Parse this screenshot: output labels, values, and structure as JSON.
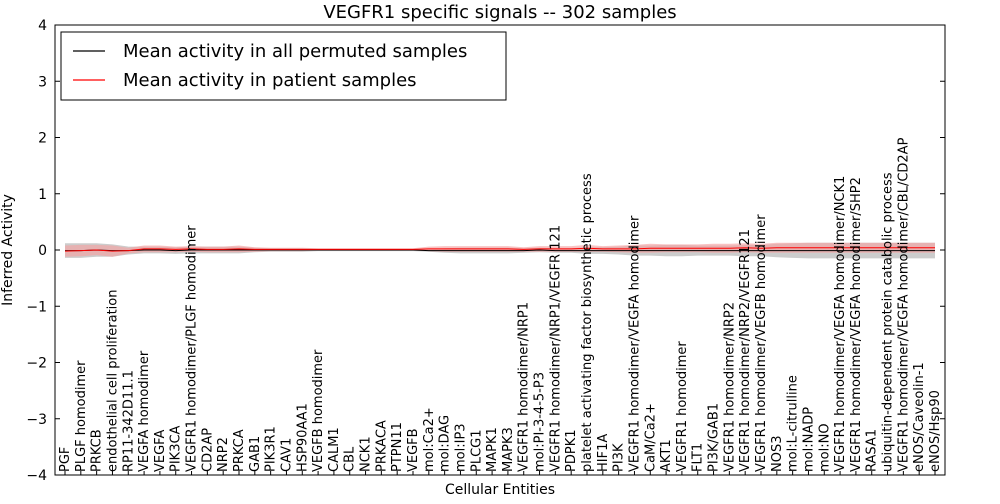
{
  "chart_data": {
    "type": "line",
    "title": "VEGFR1 specific signals -- 302 samples",
    "xlabel": "Cellular Entities",
    "ylabel": "Inferred Activity",
    "ylim": [
      -4,
      4
    ],
    "yticks": [
      -4,
      -3,
      -2,
      -1,
      0,
      1,
      2,
      3,
      4
    ],
    "ytick_labels": [
      "−4",
      "−3",
      "−2",
      "−1",
      "0",
      "1",
      "2",
      "3",
      "4"
    ],
    "grid": false,
    "legend_position": "top-left",
    "categories": [
      "PGF",
      "PLGF homodimer",
      "PRKCB",
      "endothelial cell proliferation",
      "RP11-342D11.1",
      "VEGFA homodimer",
      "VEGFA",
      "PIK3CA",
      "VEGFR1 homodimer/PLGF homodimer",
      "CD2AP",
      "NRP2",
      "PRKCA",
      "GAB1",
      "PIK3R1",
      "CAV1",
      "HSP90AA1",
      "VEGFB homodimer",
      "CALM1",
      "CBL",
      "NCK1",
      "PRKACA",
      "PTPN11",
      "VEGFB",
      "mol:Ca2+",
      "mol:DAG",
      "mol:IP3",
      "PLCG1",
      "MAPK1",
      "MAPK3",
      "VEGFR1 homodimer/NRP1",
      "mol:PI-3-4-5-P3",
      "VEGFR1 homodimer/NRP1/VEGFR 121",
      "PDPK1",
      "platelet activating factor biosynthetic process",
      "HIF1A",
      "PI3K",
      "VEGFR1 homodimer/VEGFA homodimer",
      "CaM/Ca2+",
      "AKT1",
      "VEGFR1 homodimer",
      "FLT1",
      "PI3K/GAB1",
      "VEGFR1 homodimer/NRP2",
      "VEGFR1 homodimer/NRP2/VEGFR121",
      "VEGFR1 homodimer/VEGFB homodimer",
      "NOS3",
      "mol:L-citrulline",
      "mol:NADP",
      "mol:NO",
      "VEGFR1 homodimer/VEGFA homodimer/NCK1",
      "VEGFR1 homodimer/VEGFA homodimer/SHP2",
      "RASA1",
      "ubiquitin-dependent protein catabolic process",
      "VEGFR1 homodimer/VEGFA homodimer/CBL/CD2AP",
      "eNOS/Caveolin-1",
      "eNOS/Hsp90"
    ],
    "series": [
      {
        "name": "Mean activity in all permuted samples",
        "color": "#000000",
        "band_color": "#bfbfbf",
        "values": [
          -0.01,
          -0.01,
          0,
          -0.01,
          -0.01,
          0,
          0,
          -0.01,
          0,
          0,
          0,
          0,
          0,
          0,
          0,
          0,
          0,
          0,
          0,
          0,
          0,
          0,
          0,
          -0.01,
          -0.01,
          -0.01,
          -0.01,
          -0.01,
          -0.01,
          -0.01,
          0,
          -0.01,
          -0.01,
          -0.01,
          -0.01,
          -0.01,
          -0.01,
          -0.01,
          -0.01,
          -0.01,
          -0.01,
          -0.01,
          -0.01,
          -0.01,
          -0.01,
          -0.01,
          -0.01,
          -0.01,
          -0.01,
          -0.01,
          -0.01,
          -0.01,
          -0.01,
          -0.01,
          -0.01,
          -0.01
        ],
        "band": [
          0.13,
          0.13,
          0.12,
          0.11,
          0.07,
          0.06,
          0.06,
          0.06,
          0.06,
          0.06,
          0.06,
          0.06,
          0.04,
          0.03,
          0.03,
          0.03,
          0.02,
          0.02,
          0.02,
          0.02,
          0.02,
          0.02,
          0.02,
          0.02,
          0.04,
          0.05,
          0.05,
          0.05,
          0.05,
          0.04,
          0.04,
          0.04,
          0.04,
          0.06,
          0.06,
          0.07,
          0.09,
          0.09,
          0.1,
          0.1,
          0.09,
          0.09,
          0.09,
          0.1,
          0.1,
          0.12,
          0.13,
          0.14,
          0.14,
          0.14,
          0.14,
          0.14,
          0.14,
          0.14,
          0.14,
          0.14
        ]
      },
      {
        "name": "Mean activity in patient samples",
        "color": "#ff0000",
        "band_color": "#f4a3a3",
        "values": [
          -0.02,
          -0.01,
          0,
          -0.02,
          -0.01,
          0.02,
          0.02,
          0.01,
          0.02,
          0.01,
          0.01,
          0.02,
          0.01,
          0.01,
          0.01,
          0.01,
          0.01,
          0.01,
          0.01,
          0.01,
          0.01,
          0.01,
          0.01,
          0.02,
          0.02,
          0.02,
          0.02,
          0.02,
          0.02,
          0.01,
          0.02,
          0.02,
          0.02,
          0.03,
          0.02,
          0.02,
          0.02,
          0.03,
          0.03,
          0.03,
          0.03,
          0.03,
          0.03,
          0.04,
          0.03,
          0.04,
          0.04,
          0.04,
          0.04,
          0.04,
          0.04,
          0.04,
          0.04,
          0.04,
          0.04,
          0.04
        ],
        "band": [
          0.1,
          0.1,
          0.09,
          0.1,
          0.05,
          0.06,
          0.06,
          0.05,
          0.05,
          0.05,
          0.05,
          0.06,
          0.04,
          0.03,
          0.03,
          0.03,
          0.02,
          0.02,
          0.02,
          0.02,
          0.02,
          0.02,
          0.02,
          0.04,
          0.05,
          0.05,
          0.05,
          0.05,
          0.05,
          0.04,
          0.05,
          0.05,
          0.05,
          0.06,
          0.05,
          0.06,
          0.07,
          0.08,
          0.07,
          0.07,
          0.07,
          0.08,
          0.08,
          0.08,
          0.08,
          0.09,
          0.09,
          0.09,
          0.09,
          0.09,
          0.09,
          0.09,
          0.09,
          0.09,
          0.09,
          0.09
        ]
      }
    ]
  }
}
